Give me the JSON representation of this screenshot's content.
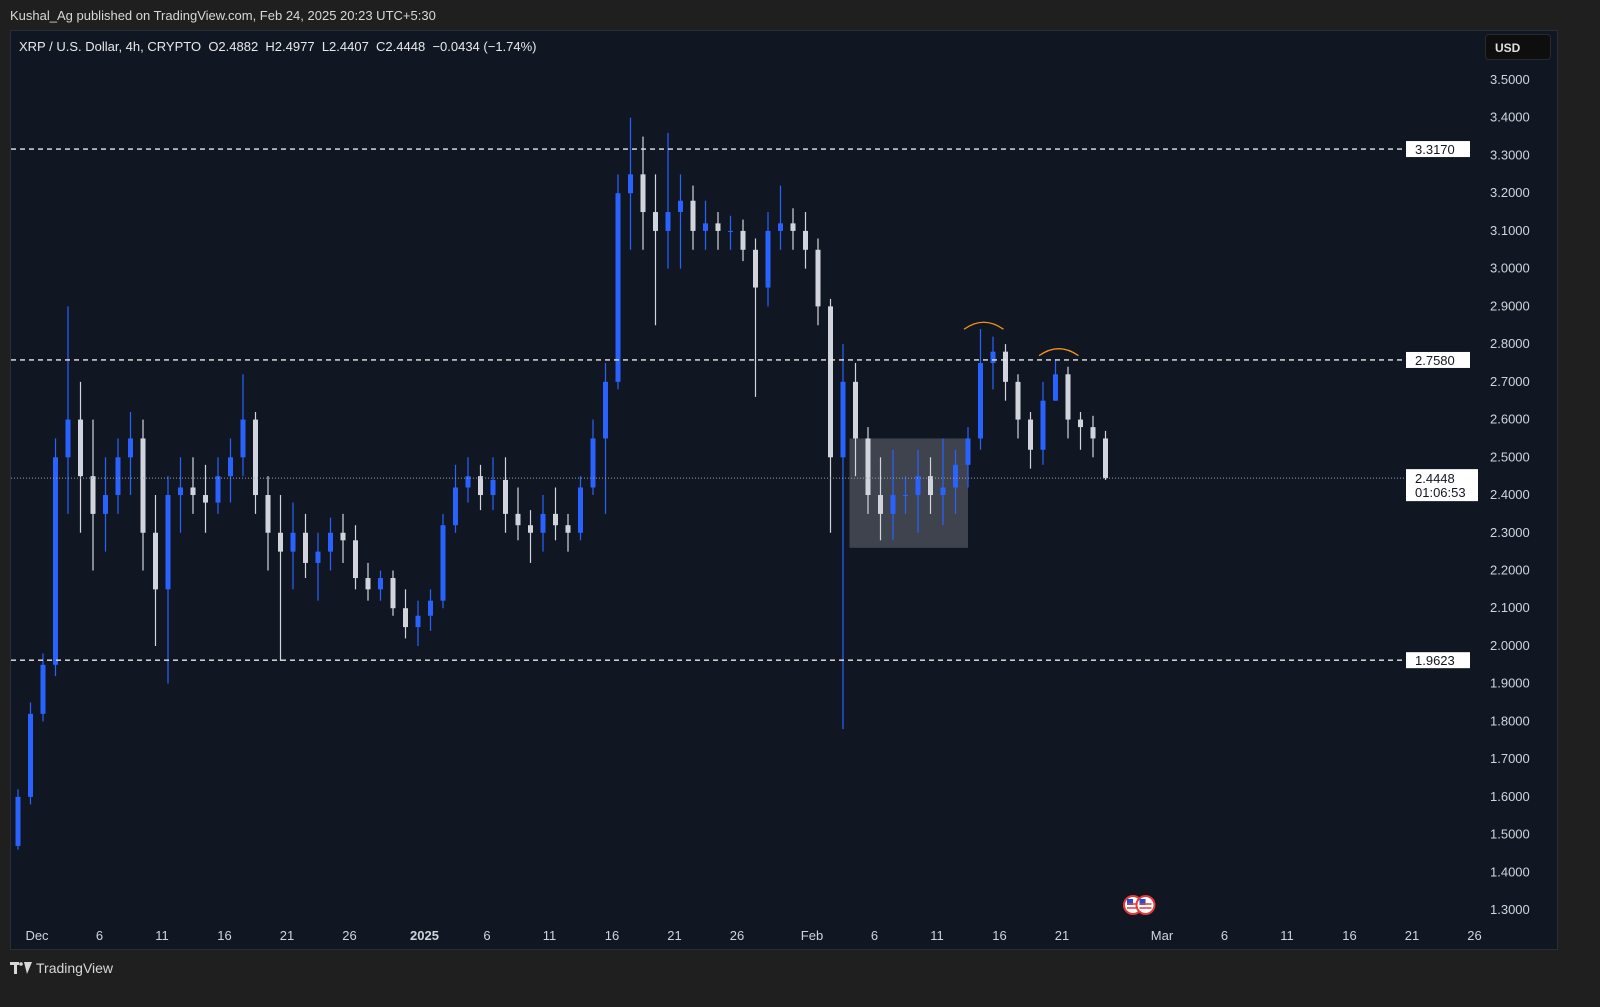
{
  "publisher_line": "Kushal_Ag published on TradingView.com, Feb 24, 2025 20:23 UTC+5:30",
  "legend": {
    "symbol": "XRP / U.S. Dollar, 4h, CRYPTO",
    "open": "O2.4882",
    "high": "H2.4977",
    "low": "L2.4407",
    "close": "C2.4448",
    "change": "−0.0434 (−1.74%)"
  },
  "currency_button": "USD",
  "brand": {
    "logo": "TV",
    "name": "TradingView"
  },
  "colors": {
    "up": "#2962ff",
    "down": "#d1d4dc",
    "background": "#111722",
    "arc": "#f7931a",
    "zone": "#4a4f5a"
  },
  "chart_data": {
    "type": "candlestick",
    "ylim": [
      1.3,
      3.5
    ],
    "y_ticks": [
      "3.5000",
      "3.4000",
      "3.3000",
      "3.2000",
      "3.1000",
      "3.0000",
      "2.9000",
      "2.8000",
      "2.7000",
      "2.6000",
      "2.5000",
      "2.4000",
      "2.3000",
      "2.2000",
      "2.1000",
      "2.0000",
      "1.9000",
      "1.8000",
      "1.7000",
      "1.6000",
      "1.5000",
      "1.4000",
      "1.3000"
    ],
    "x_ticks": [
      {
        "label": "Dec",
        "date": "2024-12-01",
        "bold": false
      },
      {
        "label": "6",
        "date": "2024-12-06"
      },
      {
        "label": "11",
        "date": "2024-12-11"
      },
      {
        "label": "16",
        "date": "2024-12-16"
      },
      {
        "label": "21",
        "date": "2024-12-21"
      },
      {
        "label": "26",
        "date": "2024-12-26"
      },
      {
        "label": "2025",
        "date": "2025-01-01",
        "bold": true
      },
      {
        "label": "6",
        "date": "2025-01-06"
      },
      {
        "label": "11",
        "date": "2025-01-11"
      },
      {
        "label": "16",
        "date": "2025-01-16"
      },
      {
        "label": "21",
        "date": "2025-01-21"
      },
      {
        "label": "26",
        "date": "2025-01-26"
      },
      {
        "label": "Feb",
        "date": "2025-02-01"
      },
      {
        "label": "6",
        "date": "2025-02-06"
      },
      {
        "label": "11",
        "date": "2025-02-11"
      },
      {
        "label": "16",
        "date": "2025-02-16"
      },
      {
        "label": "21",
        "date": "2025-02-21"
      },
      {
        "label": "Mar",
        "date": "2025-03-01"
      },
      {
        "label": "6",
        "date": "2025-03-06"
      },
      {
        "label": "11",
        "date": "2025-03-11"
      },
      {
        "label": "16",
        "date": "2025-03-16"
      },
      {
        "label": "21",
        "date": "2025-03-21"
      },
      {
        "label": "26",
        "date": "2025-03-26"
      }
    ],
    "horizontal_levels": [
      {
        "price": 3.317,
        "label": "3.3170",
        "style": "dashed"
      },
      {
        "price": 2.758,
        "label": "2.7580",
        "style": "dashed"
      },
      {
        "price": 1.9623,
        "label": "1.9623",
        "style": "dashed"
      }
    ],
    "last_price": {
      "price": 2.4448,
      "label": "2.4448",
      "countdown": "01:06:53"
    },
    "zone": {
      "from": "2025-02-04",
      "to": "2025-02-13",
      "top": 2.55,
      "bottom": 2.26
    },
    "arcs": [
      {
        "from": "2025-02-13",
        "to": "2025-02-16",
        "price": 2.85
      },
      {
        "from": "2025-02-19",
        "to": "2025-02-22",
        "price": 2.78
      }
    ],
    "events": [
      {
        "date": "2025-02-27",
        "icon": "us-flag-icon"
      },
      {
        "date": "2025-02-28",
        "icon": "us-flag-icon"
      }
    ],
    "ohlc": [
      [
        "2024-11-29",
        1.47,
        1.62,
        1.46,
        1.6
      ],
      [
        "2024-11-30",
        1.6,
        1.85,
        1.58,
        1.82
      ],
      [
        "2024-12-01",
        1.82,
        1.98,
        1.8,
        1.95
      ],
      [
        "2024-12-02",
        1.95,
        2.55,
        1.92,
        2.5
      ],
      [
        "2024-12-03",
        2.5,
        2.9,
        2.35,
        2.6
      ],
      [
        "2024-12-04",
        2.6,
        2.7,
        2.3,
        2.45
      ],
      [
        "2024-12-05",
        2.45,
        2.6,
        2.2,
        2.35
      ],
      [
        "2024-12-06",
        2.35,
        2.5,
        2.25,
        2.4
      ],
      [
        "2024-12-07",
        2.4,
        2.55,
        2.35,
        2.5
      ],
      [
        "2024-12-08",
        2.5,
        2.62,
        2.4,
        2.55
      ],
      [
        "2024-12-09",
        2.55,
        2.6,
        2.2,
        2.3
      ],
      [
        "2024-12-10",
        2.3,
        2.4,
        2.0,
        2.15
      ],
      [
        "2024-12-11",
        2.15,
        2.45,
        1.9,
        2.4
      ],
      [
        "2024-12-12",
        2.4,
        2.5,
        2.3,
        2.42
      ],
      [
        "2024-12-13",
        2.42,
        2.5,
        2.35,
        2.4
      ],
      [
        "2024-12-14",
        2.4,
        2.48,
        2.3,
        2.38
      ],
      [
        "2024-12-15",
        2.38,
        2.5,
        2.35,
        2.45
      ],
      [
        "2024-12-16",
        2.45,
        2.55,
        2.38,
        2.5
      ],
      [
        "2024-12-17",
        2.5,
        2.72,
        2.45,
        2.6
      ],
      [
        "2024-12-18",
        2.6,
        2.62,
        2.35,
        2.4
      ],
      [
        "2024-12-19",
        2.4,
        2.45,
        2.2,
        2.3
      ],
      [
        "2024-12-20",
        2.3,
        2.4,
        1.96,
        2.25
      ],
      [
        "2024-12-21",
        2.25,
        2.38,
        2.15,
        2.3
      ],
      [
        "2024-12-22",
        2.3,
        2.35,
        2.18,
        2.22
      ],
      [
        "2024-12-23",
        2.22,
        2.3,
        2.12,
        2.25
      ],
      [
        "2024-12-24",
        2.25,
        2.34,
        2.2,
        2.3
      ],
      [
        "2024-12-25",
        2.3,
        2.35,
        2.22,
        2.28
      ],
      [
        "2024-12-26",
        2.28,
        2.32,
        2.15,
        2.18
      ],
      [
        "2024-12-27",
        2.18,
        2.22,
        2.12,
        2.15
      ],
      [
        "2024-12-28",
        2.15,
        2.2,
        2.12,
        2.18
      ],
      [
        "2024-12-29",
        2.18,
        2.2,
        2.08,
        2.1
      ],
      [
        "2024-12-30",
        2.1,
        2.15,
        2.02,
        2.05
      ],
      [
        "2024-12-31",
        2.05,
        2.12,
        2.0,
        2.08
      ],
      [
        "2025-01-01",
        2.08,
        2.15,
        2.04,
        2.12
      ],
      [
        "2025-01-02",
        2.12,
        2.35,
        2.1,
        2.32
      ],
      [
        "2025-01-03",
        2.32,
        2.48,
        2.3,
        2.42
      ],
      [
        "2025-01-04",
        2.42,
        2.5,
        2.38,
        2.45
      ],
      [
        "2025-01-05",
        2.45,
        2.48,
        2.36,
        2.4
      ],
      [
        "2025-01-06",
        2.4,
        2.5,
        2.36,
        2.44
      ],
      [
        "2025-01-07",
        2.44,
        2.5,
        2.3,
        2.35
      ],
      [
        "2025-01-08",
        2.35,
        2.42,
        2.28,
        2.32
      ],
      [
        "2025-01-09",
        2.32,
        2.36,
        2.22,
        2.3
      ],
      [
        "2025-01-10",
        2.3,
        2.4,
        2.25,
        2.35
      ],
      [
        "2025-01-11",
        2.35,
        2.42,
        2.28,
        2.32
      ],
      [
        "2025-01-12",
        2.32,
        2.35,
        2.25,
        2.3
      ],
      [
        "2025-01-13",
        2.3,
        2.45,
        2.28,
        2.42
      ],
      [
        "2025-01-14",
        2.42,
        2.6,
        2.4,
        2.55
      ],
      [
        "2025-01-15",
        2.55,
        2.75,
        2.35,
        2.7
      ],
      [
        "2025-01-16",
        2.7,
        3.25,
        2.68,
        3.2
      ],
      [
        "2025-01-17",
        3.2,
        3.4,
        3.05,
        3.25
      ],
      [
        "2025-01-18",
        3.25,
        3.35,
        3.05,
        3.15
      ],
      [
        "2025-01-19",
        3.15,
        3.25,
        2.85,
        3.1
      ],
      [
        "2025-01-20",
        3.1,
        3.36,
        3.0,
        3.15
      ],
      [
        "2025-01-21",
        3.15,
        3.25,
        3.0,
        3.18
      ],
      [
        "2025-01-22",
        3.18,
        3.22,
        3.05,
        3.1
      ],
      [
        "2025-01-23",
        3.1,
        3.18,
        3.05,
        3.12
      ],
      [
        "2025-01-24",
        3.12,
        3.15,
        3.05,
        3.1
      ],
      [
        "2025-01-25",
        3.1,
        3.14,
        3.05,
        3.1
      ],
      [
        "2025-01-26",
        3.1,
        3.13,
        3.02,
        3.05
      ],
      [
        "2025-01-27",
        3.05,
        3.08,
        2.66,
        2.95
      ],
      [
        "2025-01-28",
        2.95,
        3.15,
        2.9,
        3.1
      ],
      [
        "2025-01-29",
        3.1,
        3.22,
        3.05,
        3.12
      ],
      [
        "2025-01-30",
        3.12,
        3.16,
        3.05,
        3.1
      ],
      [
        "2025-01-31",
        3.1,
        3.15,
        3.0,
        3.05
      ],
      [
        "2025-02-01",
        3.05,
        3.08,
        2.85,
        2.9
      ],
      [
        "2025-02-02",
        2.9,
        2.92,
        2.3,
        2.5
      ],
      [
        "2025-02-03",
        2.5,
        2.8,
        1.78,
        2.7
      ],
      [
        "2025-02-04",
        2.7,
        2.75,
        2.45,
        2.55
      ],
      [
        "2025-02-05",
        2.55,
        2.58,
        2.35,
        2.4
      ],
      [
        "2025-02-06",
        2.4,
        2.5,
        2.28,
        2.35
      ],
      [
        "2025-02-07",
        2.35,
        2.52,
        2.28,
        2.4
      ],
      [
        "2025-02-08",
        2.4,
        2.45,
        2.35,
        2.4
      ],
      [
        "2025-02-09",
        2.4,
        2.52,
        2.3,
        2.45
      ],
      [
        "2025-02-10",
        2.45,
        2.5,
        2.35,
        2.4
      ],
      [
        "2025-02-11",
        2.4,
        2.55,
        2.32,
        2.42
      ],
      [
        "2025-02-12",
        2.42,
        2.52,
        2.35,
        2.48
      ],
      [
        "2025-02-13",
        2.48,
        2.58,
        2.42,
        2.55
      ],
      [
        "2025-02-14",
        2.55,
        2.84,
        2.52,
        2.75
      ],
      [
        "2025-02-15",
        2.75,
        2.82,
        2.68,
        2.78
      ],
      [
        "2025-02-16",
        2.78,
        2.8,
        2.65,
        2.7
      ],
      [
        "2025-02-17",
        2.7,
        2.72,
        2.55,
        2.6
      ],
      [
        "2025-02-18",
        2.6,
        2.62,
        2.47,
        2.52
      ],
      [
        "2025-02-19",
        2.52,
        2.7,
        2.48,
        2.65
      ],
      [
        "2025-02-20",
        2.65,
        2.76,
        2.65,
        2.72
      ],
      [
        "2025-02-21",
        2.72,
        2.74,
        2.55,
        2.6
      ],
      [
        "2025-02-22",
        2.6,
        2.62,
        2.52,
        2.58
      ],
      [
        "2025-02-23",
        2.58,
        2.61,
        2.5,
        2.55
      ],
      [
        "2025-02-24",
        2.55,
        2.57,
        2.44,
        2.4448
      ]
    ]
  }
}
